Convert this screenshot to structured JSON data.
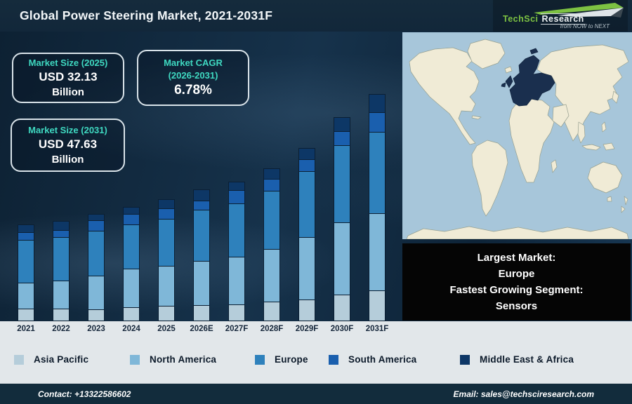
{
  "header": {
    "title": "Global Power Steering Market, 2021-2031F",
    "brand": {
      "name_primary": "TechSci",
      "name_secondary": "Research",
      "tagline": "from NOW to NEXT",
      "green": "#7dc242"
    }
  },
  "stats": {
    "box_2025": {
      "label": "Market Size (2025)",
      "value": "USD 32.13",
      "unit": "Billion"
    },
    "box_cagr": {
      "label_line1": "Market CAGR",
      "label_line2": "(2026-2031)",
      "value": "6.78%"
    },
    "box_2031": {
      "label": "Market Size (2031)",
      "value": "USD 47.63",
      "unit": "Billion"
    }
  },
  "chart_data": {
    "type": "bar",
    "stacked": true,
    "title": "Global Power Steering Market, 2021-2031F",
    "xlabel": "",
    "ylabel": "",
    "grid": false,
    "legend_position": "bottom",
    "categories": [
      "2021",
      "2022",
      "2023",
      "2024",
      "2025",
      "2026E",
      "2027F",
      "2028F",
      "2029F",
      "2030F",
      "2031F"
    ],
    "series": [
      {
        "name": "Asia Pacific",
        "color": "#b5cdda",
        "values": [
          17,
          17,
          16,
          19,
          21,
          22,
          23,
          27,
          30,
          37,
          43
        ]
      },
      {
        "name": "North America",
        "color": "#7fb7d8",
        "values": [
          37,
          40,
          48,
          55,
          57,
          63,
          68,
          75,
          89,
          103,
          110
        ]
      },
      {
        "name": "Europe",
        "color": "#2e81bc",
        "values": [
          61,
          62,
          64,
          63,
          67,
          73,
          76,
          83,
          94,
          110,
          116
        ]
      },
      {
        "name": "South America",
        "color": "#1a5fae",
        "values": [
          11,
          10,
          15,
          15,
          15,
          13,
          19,
          17,
          17,
          20,
          28
        ]
      },
      {
        "name": "Middle East & Africa",
        "color": "#0d3766",
        "values": [
          12,
          14,
          10,
          11,
          14,
          17,
          13,
          16,
          17,
          21,
          27
        ]
      }
    ],
    "units": "relative segment heights in screen pixels (infographic bars are not drawn to numeric scale)",
    "stated_values": {
      "total_2025": "USD 32.13 Billion",
      "total_2031": "USD 47.63 Billion",
      "cagr_2026_2031": "6.78%"
    }
  },
  "map": {
    "highlight_region": "Europe",
    "colors": {
      "ocean": "#a7c6da",
      "land": "#f0ebd6",
      "land_outline": "#96a090",
      "highlight": "#1a2f4e"
    }
  },
  "highlight_box": {
    "lines": [
      "Largest Market:",
      "Europe",
      "Fastest Growing Segment:",
      "Sensors"
    ]
  },
  "footer": {
    "contact": "Contact: +13322586602",
    "email": "Email: sales@techsciresearch.com"
  },
  "colors": {
    "header_bg": "#13293a",
    "chart_bg": "#112a40",
    "strip_bg": "#e2e7ea",
    "footer_bg": "#122c3c",
    "accent_teal": "#3fd9c1",
    "stat_box_border": "#d9e3e9"
  }
}
